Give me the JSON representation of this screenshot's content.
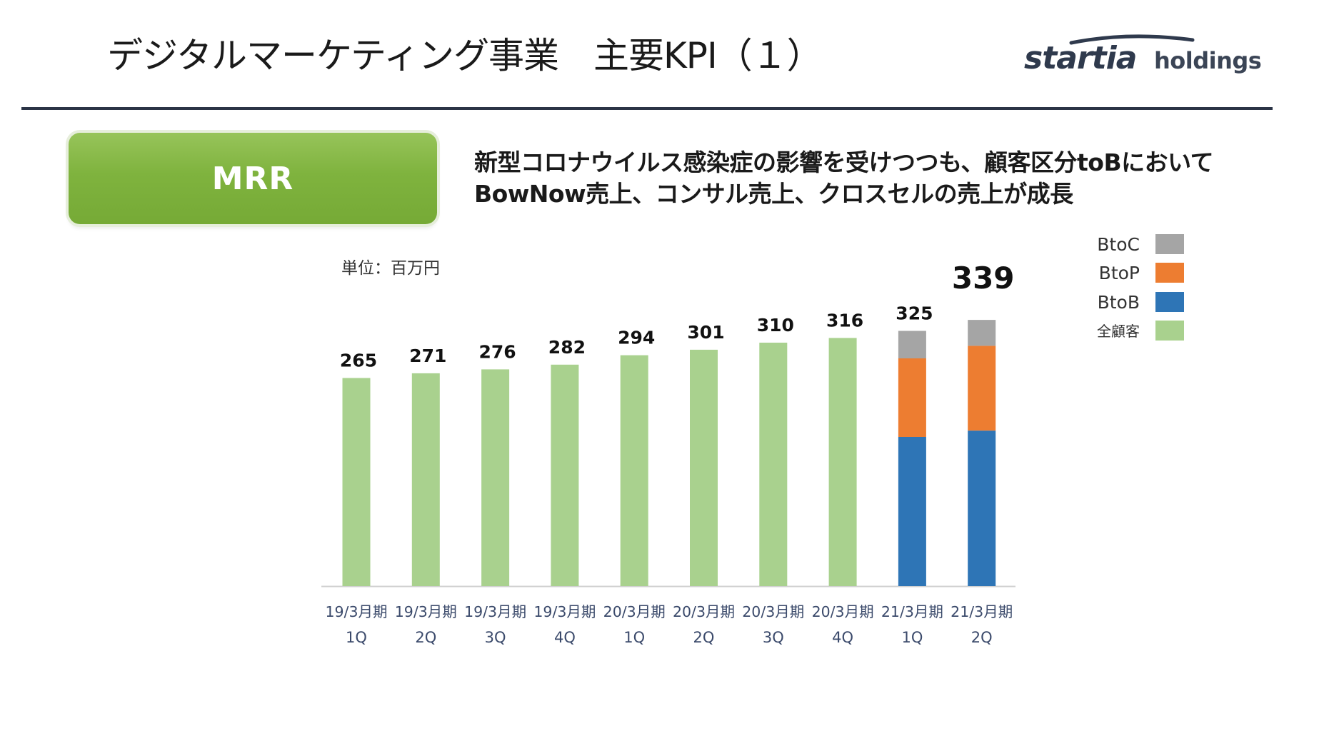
{
  "header": {
    "title": "デジタルマーケティング事業　主要KPI（１）",
    "logo_main": "startia",
    "logo_sub": "holdings"
  },
  "kpi_badge": {
    "label": "MRR"
  },
  "headline": {
    "line1": "新型コロナウイルス感染症の影響を受けつつも、顧客区分toBにおいて",
    "line2": "BowNow売上、コンサル売上、クロスセルの売上が成長"
  },
  "colors": {
    "all_customers": "#a9d18e",
    "btob": "#2e75b6",
    "btop": "#ed7d31",
    "btoc": "#a5a5a5",
    "badge": "#7fb33e",
    "rule": "#2b3446"
  },
  "chart_data": {
    "type": "bar",
    "title": "MRR",
    "unit_label": "単位：百万円",
    "categories": [
      [
        "19/3月期",
        "1Q"
      ],
      [
        "19/3月期",
        "2Q"
      ],
      [
        "19/3月期",
        "3Q"
      ],
      [
        "19/3月期",
        "4Q"
      ],
      [
        "20/3月期",
        "1Q"
      ],
      [
        "20/3月期",
        "2Q"
      ],
      [
        "20/3月期",
        "3Q"
      ],
      [
        "20/3月期",
        "4Q"
      ],
      [
        "21/3月期",
        "1Q"
      ],
      [
        "21/3月期",
        "2Q"
      ]
    ],
    "series": [
      {
        "name": "全顧客",
        "key": "all_customers",
        "values": [
          265,
          271,
          276,
          282,
          294,
          301,
          310,
          316,
          null,
          null
        ]
      },
      {
        "name": "BtoB",
        "key": "btob",
        "values": [
          null,
          null,
          null,
          null,
          null,
          null,
          null,
          null,
          190,
          198
        ]
      },
      {
        "name": "BtoP",
        "key": "btop",
        "values": [
          null,
          null,
          null,
          null,
          null,
          null,
          null,
          null,
          100,
          108
        ]
      },
      {
        "name": "BtoC",
        "key": "btoc",
        "values": [
          null,
          null,
          null,
          null,
          null,
          null,
          null,
          null,
          35,
          33
        ]
      }
    ],
    "totals": [
      265,
      271,
      276,
      282,
      294,
      301,
      310,
      316,
      325,
      339
    ],
    "total_labels": [
      "265",
      "271",
      "276",
      "282",
      "294",
      "301",
      "310",
      "316",
      "325",
      "339"
    ],
    "stacked": true,
    "ylim": [
      0,
      350
    ],
    "legend": [
      {
        "label": "BtoC",
        "key": "btoc"
      },
      {
        "label": "BtoP",
        "key": "btop"
      },
      {
        "label": "BtoB",
        "key": "btob"
      },
      {
        "label": "全顧客",
        "key": "all_customers"
      }
    ],
    "legend_position": "right",
    "grid": false
  }
}
